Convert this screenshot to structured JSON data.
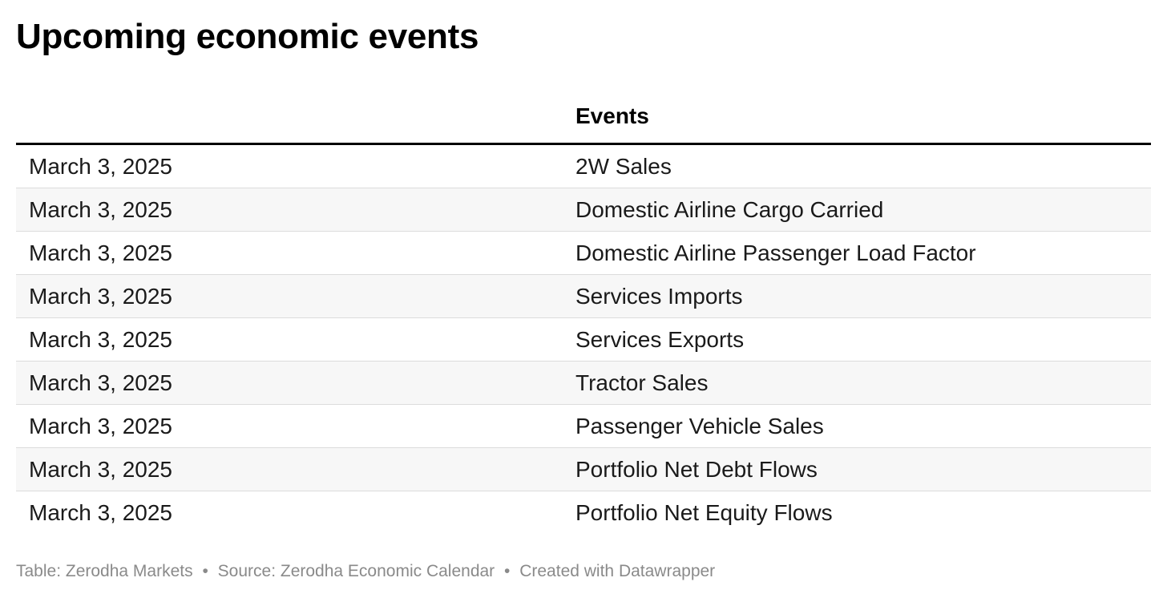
{
  "title": "Upcoming economic events",
  "table": {
    "headers": [
      "",
      "Events"
    ],
    "rows": [
      {
        "date": "March 3, 2025",
        "event": "2W Sales"
      },
      {
        "date": "March 3, 2025",
        "event": "Domestic Airline Cargo Carried"
      },
      {
        "date": "March 3, 2025",
        "event": "Domestic Airline Passenger Load Factor"
      },
      {
        "date": "March 3, 2025",
        "event": "Services Imports"
      },
      {
        "date": "March 3, 2025",
        "event": "Services Exports"
      },
      {
        "date": "March 3, 2025",
        "event": "Tractor Sales"
      },
      {
        "date": "March 3, 2025",
        "event": "Passenger Vehicle Sales"
      },
      {
        "date": "March 3, 2025",
        "event": "Portfolio Net Debt Flows"
      },
      {
        "date": "March 3, 2025",
        "event": "Portfolio Net Equity Flows"
      }
    ]
  },
  "footer": {
    "table_credit": "Table: Zerodha Markets",
    "source": "Source: Zerodha Economic Calendar",
    "created_with": "Created with Datawrapper",
    "separator": "•"
  },
  "colors": {
    "text": "#000000",
    "alt_row_background": "#f7f7f7",
    "row_divider": "#dcdcdc",
    "footer_text": "#8a8a8a"
  }
}
